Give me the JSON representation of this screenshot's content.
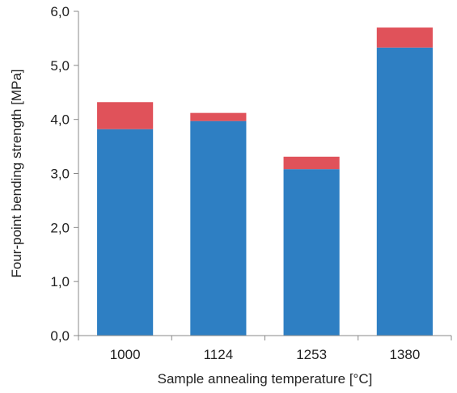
{
  "chart_data": {
    "type": "bar",
    "stacked": true,
    "categories": [
      "1000",
      "1124",
      "1253",
      "1380"
    ],
    "series": [
      {
        "color": "#2e7fc3",
        "values": [
          3.82,
          3.97,
          3.08,
          5.33
        ]
      },
      {
        "color": "#e0525a",
        "values": [
          0.5,
          0.15,
          0.23,
          0.37
        ]
      }
    ],
    "title": "",
    "xlabel": "Sample annealing temperature [°C]",
    "ylabel": "Four-point bending strength [MPa]",
    "ylim": [
      0,
      6
    ],
    "yticks": [
      0,
      1,
      2,
      3,
      4,
      5,
      6
    ],
    "ytick_labels": [
      "0,0",
      "1,0",
      "2,0",
      "3,0",
      "4,0",
      "5,0",
      "6,0"
    ],
    "grid": false,
    "legend": "none"
  }
}
